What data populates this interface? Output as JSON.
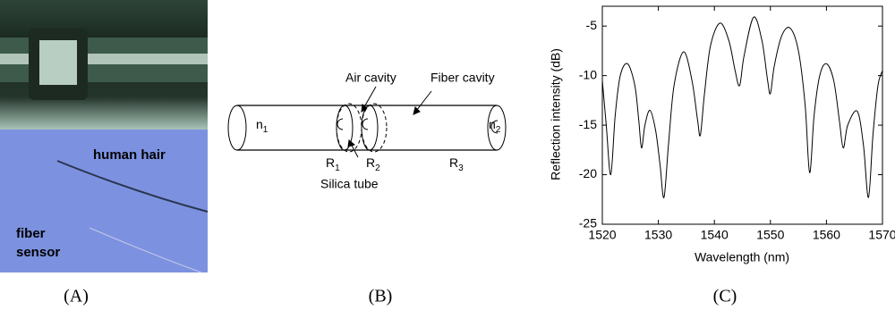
{
  "panel_a": {
    "label": "(A)",
    "hair_label": "human hair",
    "fiber_label_1": "fiber",
    "fiber_label_2": "sensor"
  },
  "panel_b": {
    "label": "(B)",
    "air_cavity": "Air cavity",
    "fiber_cavity": "Fiber cavity",
    "silica_tube": "Silica tube",
    "n1": {
      "text": "n",
      "sub": "1"
    },
    "n2": {
      "text": "n",
      "sub": "2"
    },
    "r1": {
      "text": "R",
      "sub": "1"
    },
    "r2": {
      "text": "R",
      "sub": "2"
    },
    "r3": {
      "text": "R",
      "sub": "3"
    }
  },
  "panel_c": {
    "label": "(C)"
  },
  "chart_data": {
    "type": "line",
    "xlabel": "Wavelength (nm)",
    "ylabel": "Reflection intensity (dB)",
    "color": "#000000",
    "xlim": [
      1520,
      1570
    ],
    "ylim": [
      -25,
      -3
    ],
    "xticks": [
      1520,
      1530,
      1540,
      1550,
      1560,
      1570
    ],
    "yticks": [
      -5,
      -10,
      -15,
      -20,
      -25
    ],
    "x": [
      1520,
      1520.7,
      1521.5,
      1522.3,
      1523.2,
      1524.5,
      1525.8,
      1526.5,
      1527,
      1527.6,
      1528.5,
      1529.5,
      1530.3,
      1531,
      1531.8,
      1532.8,
      1534.5,
      1536,
      1537,
      1537.5,
      1538.2,
      1539.3,
      1541,
      1542.6,
      1543.7,
      1544.5,
      1545.3,
      1547,
      1548.5,
      1549.5,
      1550,
      1550.7,
      1552,
      1553.5,
      1555,
      1556.2,
      1557,
      1557.8,
      1558.8,
      1560,
      1561.3,
      1562.3,
      1563,
      1563.8,
      1565.5,
      1566.6,
      1567.5,
      1568.3,
      1569.2,
      1570
    ],
    "values": [
      -10.5,
      -15,
      -20,
      -14,
      -10,
      -8.8,
      -11,
      -14.5,
      -17.3,
      -15,
      -13.5,
      -15.5,
      -19,
      -22.3,
      -17,
      -11,
      -7.6,
      -10.5,
      -14.5,
      -16,
      -12,
      -7,
      -4.7,
      -6.5,
      -9.5,
      -11,
      -8,
      -4.1,
      -6.5,
      -10.5,
      -11.8,
      -9,
      -6,
      -5.2,
      -7.5,
      -13,
      -19.8,
      -14,
      -10,
      -8.8,
      -10.5,
      -14.5,
      -17.3,
      -15,
      -13.6,
      -17,
      -22.3,
      -16,
      -11,
      -9.5
    ]
  }
}
